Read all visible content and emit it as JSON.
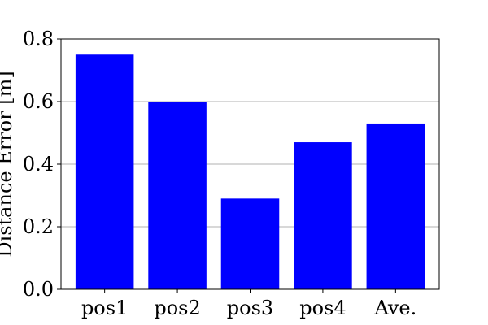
{
  "chart_data": {
    "type": "bar",
    "categories": [
      "pos1",
      "pos2",
      "pos3",
      "pos4",
      "Ave."
    ],
    "values": [
      0.75,
      0.6,
      0.29,
      0.47,
      0.53
    ],
    "ylabel": "Distance Error [m]",
    "ylim": [
      0,
      0.8
    ],
    "yticks": [
      "0.0",
      "0.2",
      "0.4",
      "0.6",
      "0.8"
    ],
    "grid": "horizontal",
    "bar_color": "#0000ff",
    "grid_color": "#b0b0b0"
  }
}
